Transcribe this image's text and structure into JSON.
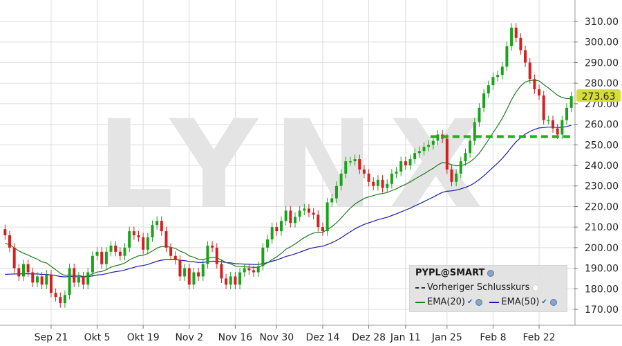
{
  "chart_data": {
    "type": "candlestick",
    "symbol_label": "PYPL@SMART",
    "watermark": "LYNX",
    "last_price_label": "273.63",
    "ylim": [
      162,
      318
    ],
    "yticks": [
      "310.00",
      "300.00",
      "290.00",
      "280.00",
      "270.00",
      "260.00",
      "250.00",
      "240.00",
      "230.00",
      "220.00",
      "210.00",
      "200.00",
      "190.00",
      "180.00",
      "170.00"
    ],
    "ytick_values": [
      310,
      300,
      290,
      280,
      270,
      260,
      250,
      240,
      230,
      220,
      210,
      200,
      190,
      180,
      170
    ],
    "xticks": [
      {
        "label": "Sep 21",
        "index": 10
      },
      {
        "label": "Okt 5",
        "index": 20
      },
      {
        "label": "Okt 19",
        "index": 30
      },
      {
        "label": "Nov 2",
        "index": 40
      },
      {
        "label": "Nov 16",
        "index": 50
      },
      {
        "label": "Nov 30",
        "index": 59
      },
      {
        "label": "Dez 14",
        "index": 69
      },
      {
        "label": "Dez 28",
        "index": 79
      },
      {
        "label": "Jan 11",
        "index": 87
      },
      {
        "label": "Jan 25",
        "index": 96
      },
      {
        "label": "Feb 8",
        "index": 106
      },
      {
        "label": "Feb 22",
        "index": 116
      }
    ],
    "support_level": 254,
    "support_from_index": 93,
    "close": [
      206,
      200,
      190,
      186,
      192,
      188,
      183,
      186,
      182,
      187,
      178,
      176,
      173,
      177,
      190,
      183,
      186,
      182,
      188,
      196,
      198,
      192,
      198,
      201,
      198,
      196,
      200,
      208,
      206,
      205,
      199,
      205,
      211,
      213,
      208,
      200,
      196,
      194,
      186,
      190,
      182,
      188,
      186,
      192,
      201,
      200,
      192,
      185,
      182,
      186,
      182,
      188,
      190,
      189,
      188,
      191,
      200,
      204,
      210,
      208,
      213,
      218,
      212,
      215,
      218,
      219,
      217,
      216,
      210,
      208,
      222,
      224,
      230,
      236,
      242,
      242,
      243,
      238,
      236,
      232,
      230,
      233,
      229,
      231,
      236,
      237,
      242,
      240,
      243,
      246,
      247,
      249,
      250,
      252,
      255,
      253,
      238,
      232,
      236,
      242,
      246,
      252,
      261,
      268,
      275,
      279,
      283,
      284,
      288,
      298,
      307,
      302,
      296,
      290,
      282,
      277,
      274,
      262,
      262,
      258,
      255,
      262,
      268,
      273.63
    ],
    "ema20": [
      202,
      201.5,
      199.9,
      198.4,
      197.3,
      196.4,
      195.3,
      194.4,
      193.1,
      192.5,
      190.9,
      189.3,
      187.5,
      186.5,
      186.8,
      186.5,
      186.5,
      186,
      186.2,
      187.3,
      188.1,
      188.4,
      189.3,
      190.5,
      191.2,
      191.7,
      192.5,
      194,
      195.1,
      196,
      196.3,
      197.1,
      198.4,
      199.8,
      200.6,
      200.6,
      200.2,
      199.6,
      198.3,
      197.5,
      196.0,
      195.3,
      194.4,
      194.2,
      194.8,
      195.3,
      195.0,
      194.0,
      192.8,
      192.1,
      191.1,
      190.8,
      190.7,
      190.6,
      190.4,
      190.5,
      191.4,
      192.6,
      194.2,
      195.5,
      197.2,
      199.2,
      200.4,
      201.8,
      203.4,
      204.9,
      206.1,
      207.1,
      207.4,
      207.5,
      208.8,
      210.2,
      212.1,
      214.4,
      216.9,
      219.2,
      221.2,
      222.6,
      223.9,
      224.7,
      225.3,
      226.0,
      226.3,
      226.8,
      227.7,
      228.6,
      229.8,
      230.8,
      232.0,
      233.3,
      234.6,
      235.9,
      237.3,
      238.6,
      240.2,
      241.4,
      241.1,
      240.3,
      239.8,
      239.9,
      240.5,
      241.7,
      243.5,
      245.9,
      249.1,
      252.4,
      255.9,
      259.2,
      262.9,
      267.2,
      271.9,
      275.7,
      278.6,
      280.6,
      281.3,
      281.4,
      281.1,
      279.3,
      277.7,
      275.9,
      274.1,
      273.0,
      272.5,
      272.5
    ],
    "ema50": [
      187,
      187.1,
      187.2,
      187.2,
      187.3,
      187.3,
      187.2,
      187.2,
      187.0,
      187.0,
      186.7,
      186.4,
      186.0,
      185.8,
      186.0,
      185.9,
      185.9,
      185.8,
      185.9,
      186.3,
      186.7,
      186.9,
      187.3,
      187.9,
      188.3,
      188.6,
      189.1,
      189.8,
      190.4,
      191.0,
      191.3,
      191.8,
      192.6,
      193.4,
      193.9,
      194.2,
      194.2,
      194.2,
      193.9,
      193.7,
      193.3,
      193.1,
      192.8,
      192.8,
      193.1,
      193.4,
      193.4,
      193.1,
      192.8,
      192.6,
      192.2,
      192.1,
      192.0,
      191.9,
      191.8,
      191.8,
      192.2,
      192.7,
      193.4,
      194.0,
      194.8,
      195.7,
      196.3,
      197.0,
      197.8,
      198.6,
      199.4,
      200.0,
      200.4,
      200.7,
      201.5,
      202.4,
      203.5,
      204.8,
      206.3,
      207.7,
      209.1,
      210.3,
      211.3,
      212.1,
      212.8,
      213.6,
      214.2,
      214.8,
      215.6,
      216.4,
      217.4,
      218.3,
      219.2,
      220.3,
      221.3,
      222.4,
      223.5,
      224.6,
      225.8,
      226.9,
      227.4,
      227.6,
      228.0,
      228.6,
      229.3,
      230.2,
      231.5,
      233.1,
      235.0,
      237.0,
      239.1,
      241.1,
      243.4,
      246.0,
      248.9,
      251.4,
      253.5,
      255.2,
      256.5,
      257.5,
      258.2,
      258.4,
      258.6,
      258.6,
      258.4,
      258.5,
      258.9,
      259.5
    ]
  },
  "legend": {
    "title": "PYPL@SMART",
    "prev_close": "Vorheriger Schlusskurs",
    "ema20": "EMA(20)",
    "ema50": "EMA(50)"
  },
  "colors": {
    "up": "#1aa31a",
    "down": "#d32020",
    "ema20": "#1d7a1d",
    "ema50": "#1a1aa8",
    "support": "#22b022",
    "price_tag": "#d6dc3a"
  }
}
